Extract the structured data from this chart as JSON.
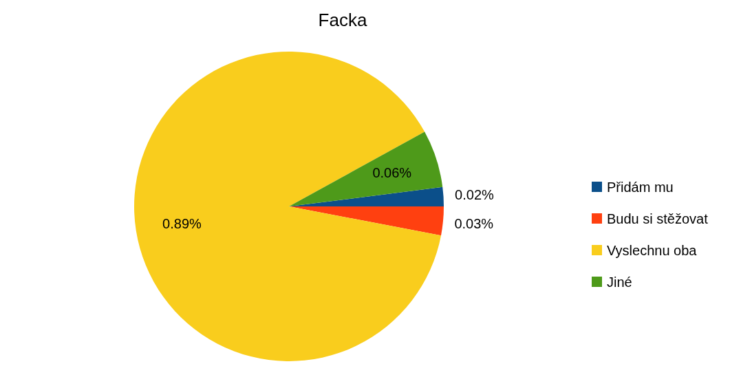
{
  "chart_data": {
    "type": "pie",
    "title": "Facka",
    "categories": [
      "Přidám mu",
      "Budu si stěžovat",
      "Vyslechnu oba",
      "Jiné"
    ],
    "values": [
      0.02,
      0.03,
      0.89,
      0.06
    ],
    "colors": [
      "#0b4f8a",
      "#ff4010",
      "#f9cd1d",
      "#4e9a1a"
    ],
    "value_labels": [
      "0.02%",
      "0.03%",
      "0.89%",
      "0.06%"
    ],
    "legend": "right"
  }
}
